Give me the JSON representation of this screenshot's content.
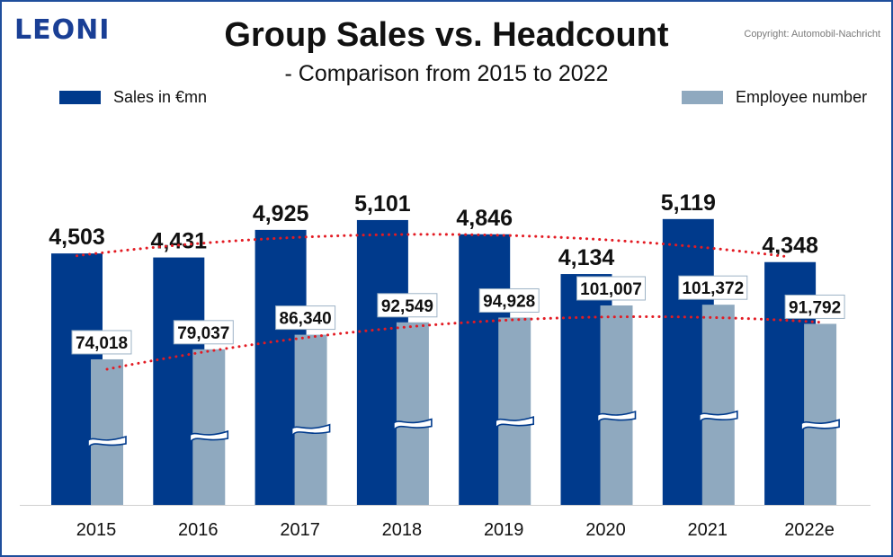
{
  "brand": {
    "logo_text": "LEONI"
  },
  "header": {
    "title": "Group Sales vs. Headcount",
    "subtitle": "- Comparison from 2015 to 2022",
    "copyright": "Copyright: Automobil-Nachricht"
  },
  "colors": {
    "sales": "#003a8c",
    "employees": "#8fa9bf",
    "trend": "#e31b23",
    "frame": "#1f4e9c"
  },
  "chart_data": {
    "type": "bar",
    "title": "Group Sales vs. Headcount",
    "subtitle": "- Comparison from 2015 to 2022",
    "categories": [
      "2015",
      "2016",
      "2017",
      "2018",
      "2019",
      "2020",
      "2021",
      "2022e"
    ],
    "series": [
      {
        "name": "Sales in €mn",
        "values": [
          4503,
          4431,
          4925,
          5101,
          4846,
          4134,
          5119,
          4348
        ],
        "labels": [
          "4,503",
          "4,431",
          "4,925",
          "5,101",
          "4,846",
          "4,134",
          "5,119",
          "4,348"
        ]
      },
      {
        "name": "Employee number",
        "values": [
          74018,
          79037,
          86340,
          92549,
          94928,
          101007,
          101372,
          91792
        ],
        "labels": [
          "74,018",
          "79,037",
          "86,340",
          "92,549",
          "94,928",
          "101,007",
          "101,372",
          "91,792"
        ]
      }
    ],
    "legend_position": "top",
    "axis_break": true,
    "trendlines": "dotted polynomial trend on both series",
    "grid": false
  }
}
